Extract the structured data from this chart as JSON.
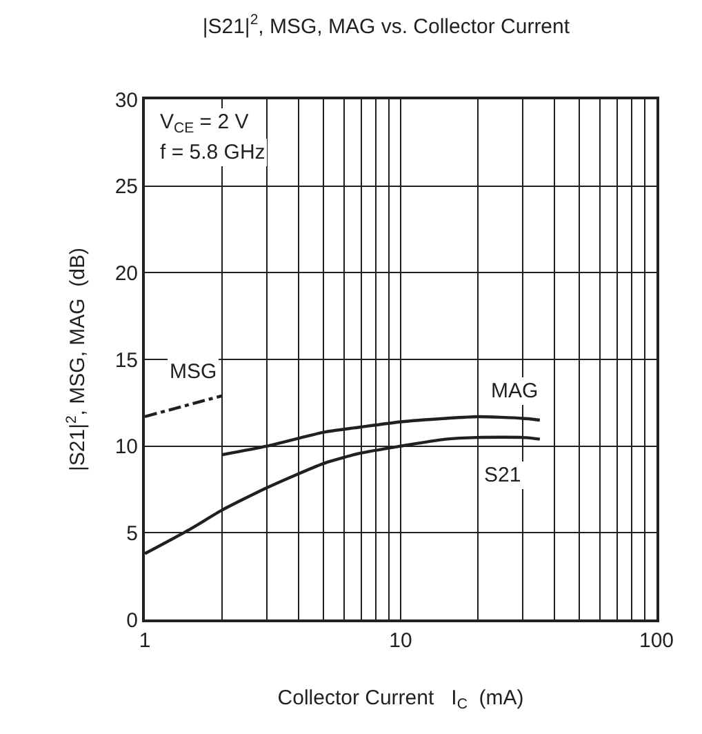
{
  "chart_data": {
    "type": "line",
    "title": "|S21|$^{2}$, MSG, MAG vs. Collector Current",
    "xlabel": "Collector Current   I$_{C}$  (mA)",
    "ylabel": "|S21|$^{2}$, MSG, MAG  (dB)",
    "annotations": [
      "V$_{CE}$ = 2 V",
      "f = 5.8 GHz"
    ],
    "series": [
      {
        "name": "MSG",
        "color": "#231f20",
        "line_style": "dashed",
        "x": [
          1,
          2
        ],
        "values": [
          11.7,
          12.9
        ]
      },
      {
        "name": "MAG",
        "color": "#231f20",
        "line_style": "solid",
        "x": [
          2,
          3,
          5,
          7,
          10,
          15,
          20,
          30,
          35
        ],
        "values": [
          9.5,
          10.0,
          10.8,
          11.1,
          11.4,
          11.6,
          11.7,
          11.6,
          11.5
        ]
      },
      {
        "name": "S21",
        "color": "#231f20",
        "line_style": "solid",
        "x": [
          1,
          1.5,
          2,
          3,
          5,
          7,
          10,
          15,
          20,
          30,
          35
        ],
        "values": [
          3.8,
          5.2,
          6.3,
          7.6,
          9.0,
          9.6,
          10.0,
          10.4,
          10.5,
          10.5,
          10.4
        ]
      }
    ],
    "log": "x",
    "xlim": [
      1,
      100
    ],
    "xticks": [
      1,
      {
        "value": 2,
        "label": null
      },
      {
        "value": 3,
        "label": null
      },
      {
        "value": 4,
        "label": null
      },
      {
        "value": 5,
        "label": null
      },
      {
        "value": 6,
        "label": null
      },
      {
        "value": 7,
        "label": null
      },
      {
        "value": 8,
        "label": null
      },
      {
        "value": 9,
        "label": null
      },
      10,
      {
        "value": 20,
        "label": null
      },
      {
        "value": 30,
        "label": null
      },
      {
        "value": 40,
        "label": null
      },
      {
        "value": 50,
        "label": null
      },
      {
        "value": 60,
        "label": null
      },
      {
        "value": 70,
        "label": null
      },
      {
        "value": 80,
        "label": null
      },
      {
        "value": 90,
        "label": null
      },
      100
    ],
    "ylim": [
      0,
      30
    ],
    "yticks": [
      0,
      5,
      10,
      15,
      20,
      25,
      30
    ],
    "grid": true,
    "legend": false,
    "marker": "none"
  }
}
